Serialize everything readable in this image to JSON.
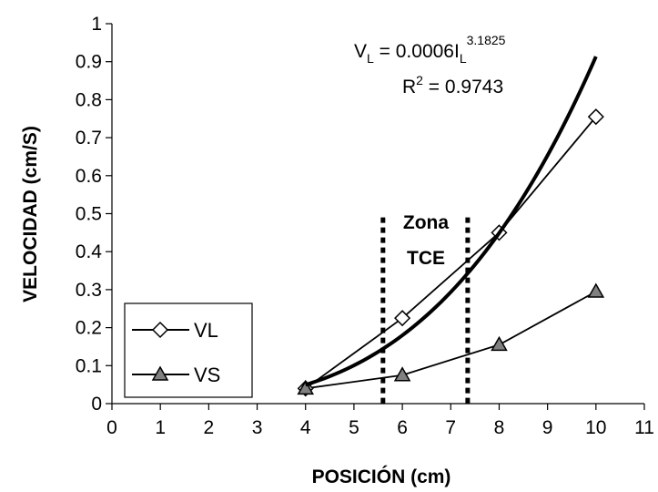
{
  "chart_data": {
    "type": "scatter",
    "xlabel": "POSICIÓN (cm)",
    "ylabel": "VELOCIDAD (cm/S)",
    "xlim": [
      0,
      11
    ],
    "ylim": [
      0,
      1
    ],
    "x_ticks": [
      "0",
      "1",
      "2",
      "3",
      "4",
      "5",
      "6",
      "7",
      "8",
      "9",
      "10",
      "11"
    ],
    "y_ticks": [
      "0",
      "0.1",
      "0.2",
      "0.3",
      "0.4",
      "0.5",
      "0.6",
      "0.7",
      "0.8",
      "0.9",
      "1"
    ],
    "grid": false,
    "legend_position": "bottom-left",
    "series": [
      {
        "name": "VL",
        "marker": "diamond",
        "color": "#000000",
        "fill": "#ffffff",
        "x": [
          4,
          6,
          8,
          10
        ],
        "y": [
          0.04,
          0.225,
          0.45,
          0.755
        ]
      },
      {
        "name": "VS",
        "marker": "triangle",
        "color": "#000000",
        "fill": "#808080",
        "x": [
          4,
          6,
          8,
          10
        ],
        "y": [
          0.04,
          0.075,
          0.155,
          0.295
        ]
      }
    ],
    "trendline": {
      "equation": {
        "v": "V",
        "v_sub": "L",
        "mid": " = 0.0006I",
        "i_sub": "L",
        "exp": "3.1825"
      },
      "r_squared": {
        "r": "R",
        "sup": "2",
        "rest": " = 0.9743"
      },
      "coefficient": 0.0006,
      "exponent": 3.1825,
      "x_range": [
        4,
        10
      ]
    },
    "zone": {
      "label_line1": "Zona",
      "label_line2": "TCE",
      "x_start": 5.6,
      "x_end": 7.35,
      "y_top": 0.49
    }
  }
}
